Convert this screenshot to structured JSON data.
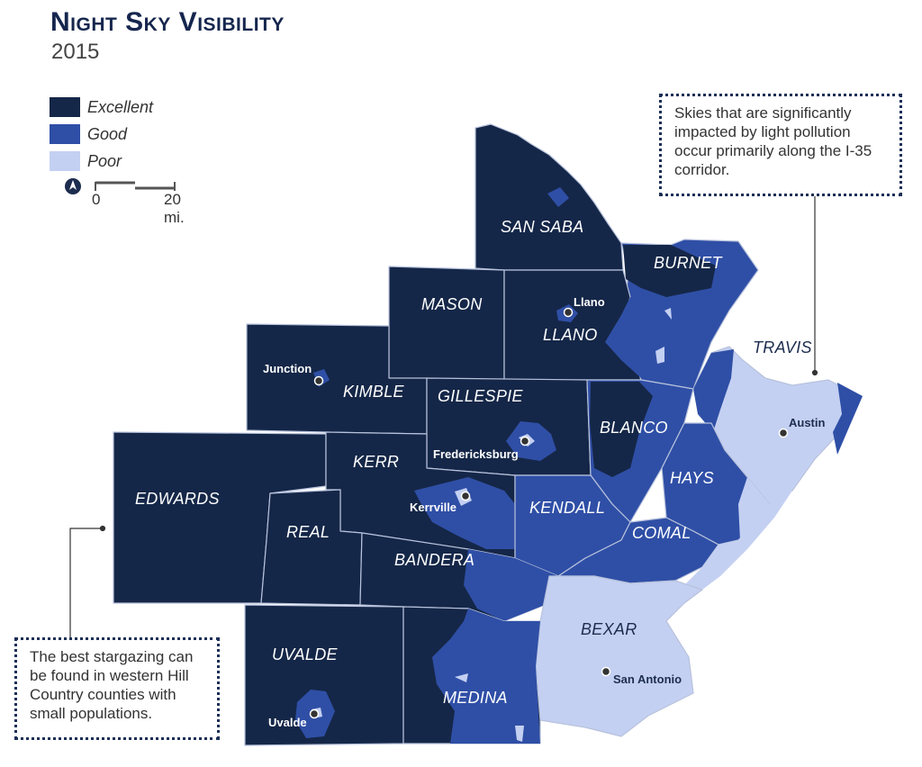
{
  "header": {
    "title": "Night Sky Visibility",
    "subtitle": "2015"
  },
  "legend": {
    "items": [
      {
        "label": "Excellent",
        "color": "#152748"
      },
      {
        "label": "Good",
        "color": "#2f4fa6"
      },
      {
        "label": "Poor",
        "color": "#c4d0f2"
      }
    ]
  },
  "scale": {
    "start": "0",
    "end": "20 mi."
  },
  "counties": {
    "san_saba": "SAN SABA",
    "burnet": "BURNET",
    "mason": "MASON",
    "llano": "LLANO",
    "travis": "TRAVIS",
    "kimble": "KIMBLE",
    "gillespie": "GILLESPIE",
    "blanco": "BLANCO",
    "edwards": "EDWARDS",
    "kerr": "KERR",
    "hays": "HAYS",
    "kendall": "KENDALL",
    "real": "REAL",
    "comal": "COMAL",
    "bandera": "BANDERA",
    "bexar": "BEXAR",
    "uvalde": "UVALDE",
    "medina": "MEDINA"
  },
  "cities": {
    "llano": "Llano",
    "junction": "Junction",
    "austin": "Austin",
    "fredericksburg": "Fredericksburg",
    "kerrville": "Kerrville",
    "san_antonio": "San Antonio",
    "uvalde": "Uvalde"
  },
  "notes": {
    "right": "Skies that are significantly impacted by light pollution occur primarily along the I-35 corridor.",
    "left": "The best stargazing can be found in western Hill Country counties with small populations."
  },
  "colors": {
    "excellent": "#152748",
    "good": "#2f4fa6",
    "poor": "#c4d0f2",
    "border": "#b8c2dc"
  },
  "icons": {
    "north_arrow": "north-arrow-icon",
    "city_marker": "city-dot-icon"
  }
}
